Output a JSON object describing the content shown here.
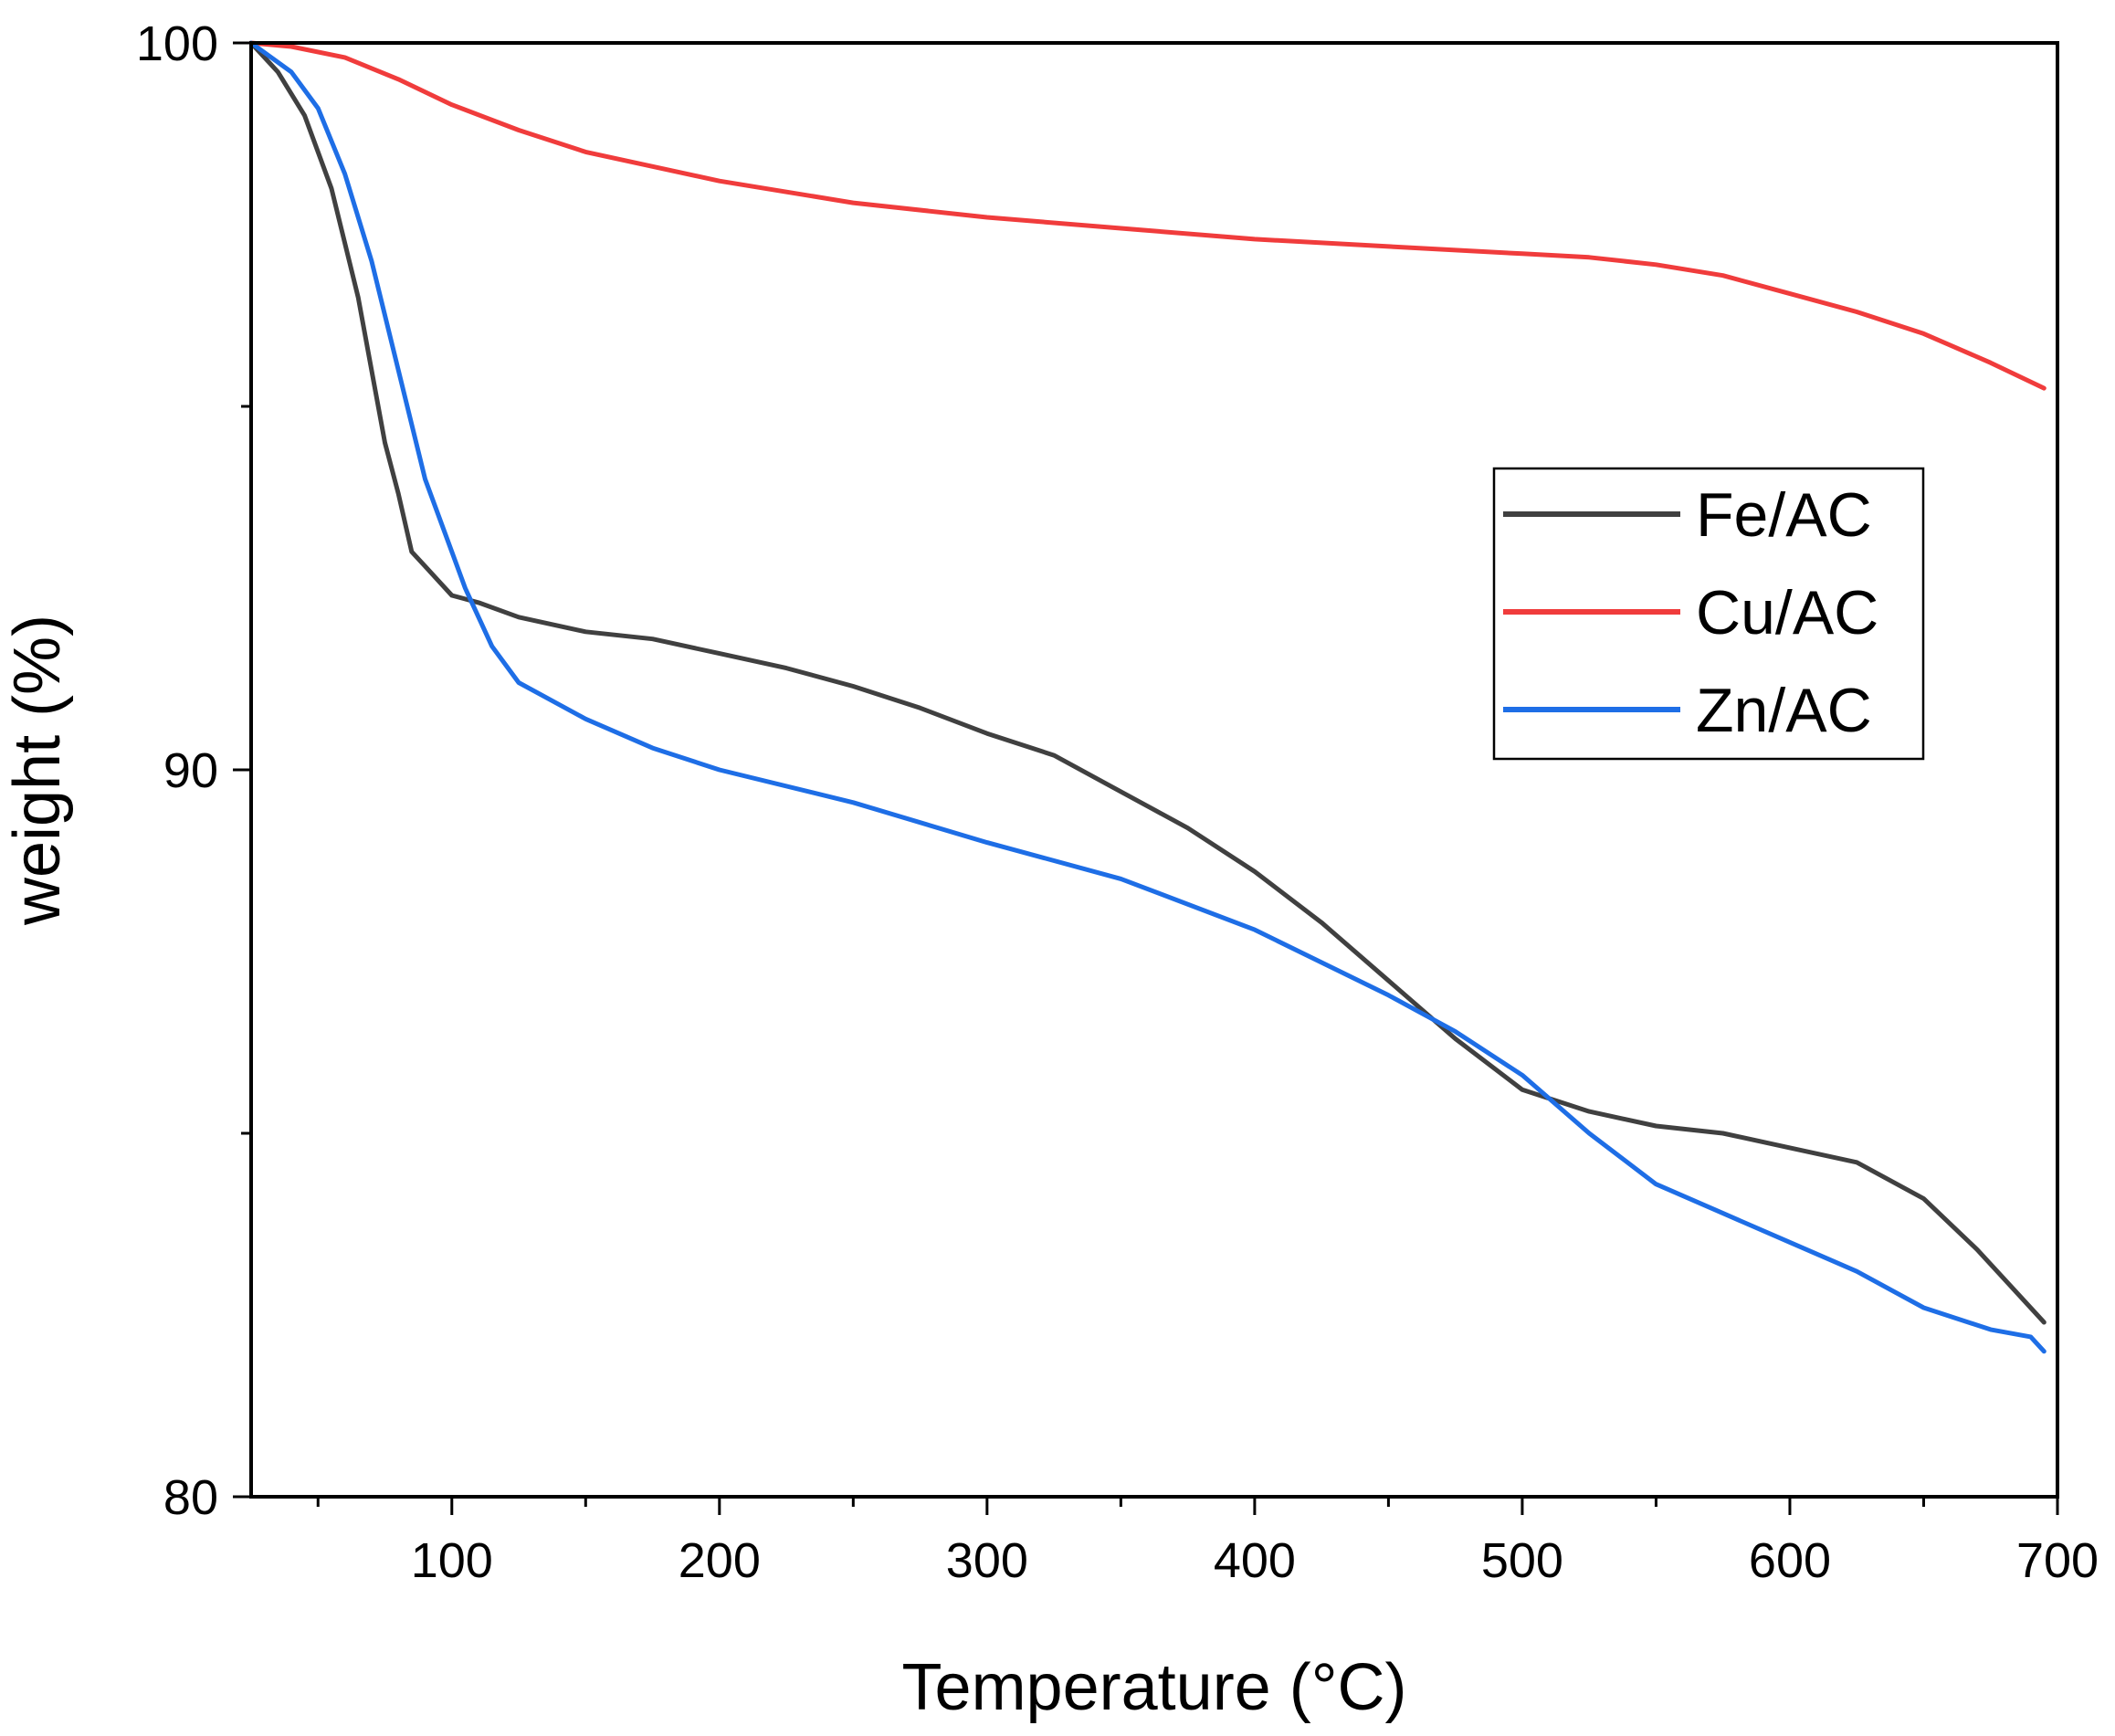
{
  "chart_data": {
    "type": "line",
    "title": "",
    "xlabel": "Temperature (°C)",
    "ylabel": "weight (%)",
    "xlim": [
      25,
      700
    ],
    "ylim": [
      80,
      100
    ],
    "x_ticks": [
      100,
      200,
      300,
      400,
      500,
      600,
      700
    ],
    "x_minor_ticks": [
      50,
      150,
      250,
      350,
      450,
      550,
      650
    ],
    "y_ticks": [
      80,
      90,
      100
    ],
    "y_minor_ticks": [
      85,
      95
    ],
    "grid": false,
    "legend_position": "right-middle",
    "series": [
      {
        "name": "Fe/AC",
        "color": "#404040",
        "points": [
          [
            25,
            100
          ],
          [
            35,
            99.6
          ],
          [
            45,
            99.0
          ],
          [
            55,
            98.0
          ],
          [
            65,
            96.5
          ],
          [
            75,
            94.5
          ],
          [
            80,
            93.8
          ],
          [
            85,
            93.0
          ],
          [
            90,
            92.8
          ],
          [
            100,
            92.4
          ],
          [
            110,
            92.3
          ],
          [
            125,
            92.1
          ],
          [
            150,
            91.9
          ],
          [
            175,
            91.8
          ],
          [
            200,
            91.6
          ],
          [
            225,
            91.4
          ],
          [
            250,
            91.15
          ],
          [
            275,
            90.85
          ],
          [
            300,
            90.5
          ],
          [
            325,
            90.2
          ],
          [
            350,
            89.7
          ],
          [
            375,
            89.2
          ],
          [
            400,
            88.6
          ],
          [
            425,
            87.9
          ],
          [
            450,
            87.1
          ],
          [
            475,
            86.3
          ],
          [
            500,
            85.6
          ],
          [
            525,
            85.3
          ],
          [
            550,
            85.1
          ],
          [
            575,
            85.0
          ],
          [
            600,
            84.8
          ],
          [
            625,
            84.6
          ],
          [
            650,
            84.1
          ],
          [
            670,
            83.4
          ],
          [
            695,
            82.4
          ]
        ]
      },
      {
        "name": "Cu/AC",
        "color": "#f03c3c",
        "points": [
          [
            25,
            100
          ],
          [
            40,
            99.95
          ],
          [
            60,
            99.8
          ],
          [
            80,
            99.5
          ],
          [
            100,
            99.15
          ],
          [
            125,
            98.8
          ],
          [
            150,
            98.5
          ],
          [
            175,
            98.3
          ],
          [
            200,
            98.1
          ],
          [
            250,
            97.8
          ],
          [
            300,
            97.6
          ],
          [
            350,
            97.45
          ],
          [
            400,
            97.3
          ],
          [
            450,
            97.2
          ],
          [
            500,
            97.1
          ],
          [
            525,
            97.05
          ],
          [
            550,
            96.95
          ],
          [
            575,
            96.8
          ],
          [
            600,
            96.55
          ],
          [
            625,
            96.3
          ],
          [
            650,
            96.0
          ],
          [
            675,
            95.6
          ],
          [
            695,
            95.25
          ]
        ]
      },
      {
        "name": "Zn/AC",
        "color": "#1e6ee6",
        "points": [
          [
            25,
            100
          ],
          [
            40,
            99.6
          ],
          [
            50,
            99.1
          ],
          [
            60,
            98.2
          ],
          [
            70,
            97.0
          ],
          [
            80,
            95.5
          ],
          [
            90,
            94.0
          ],
          [
            100,
            93.0
          ],
          [
            105,
            92.5
          ],
          [
            115,
            91.7
          ],
          [
            125,
            91.2
          ],
          [
            150,
            90.7
          ],
          [
            175,
            90.3
          ],
          [
            200,
            90.0
          ],
          [
            250,
            89.55
          ],
          [
            300,
            89.0
          ],
          [
            350,
            88.5
          ],
          [
            400,
            87.8
          ],
          [
            450,
            86.9
          ],
          [
            475,
            86.4
          ],
          [
            500,
            85.8
          ],
          [
            525,
            85.0
          ],
          [
            550,
            84.3
          ],
          [
            575,
            83.9
          ],
          [
            600,
            83.5
          ],
          [
            625,
            83.1
          ],
          [
            650,
            82.6
          ],
          [
            675,
            82.3
          ],
          [
            690,
            82.2
          ],
          [
            695,
            82.0
          ]
        ]
      }
    ]
  }
}
